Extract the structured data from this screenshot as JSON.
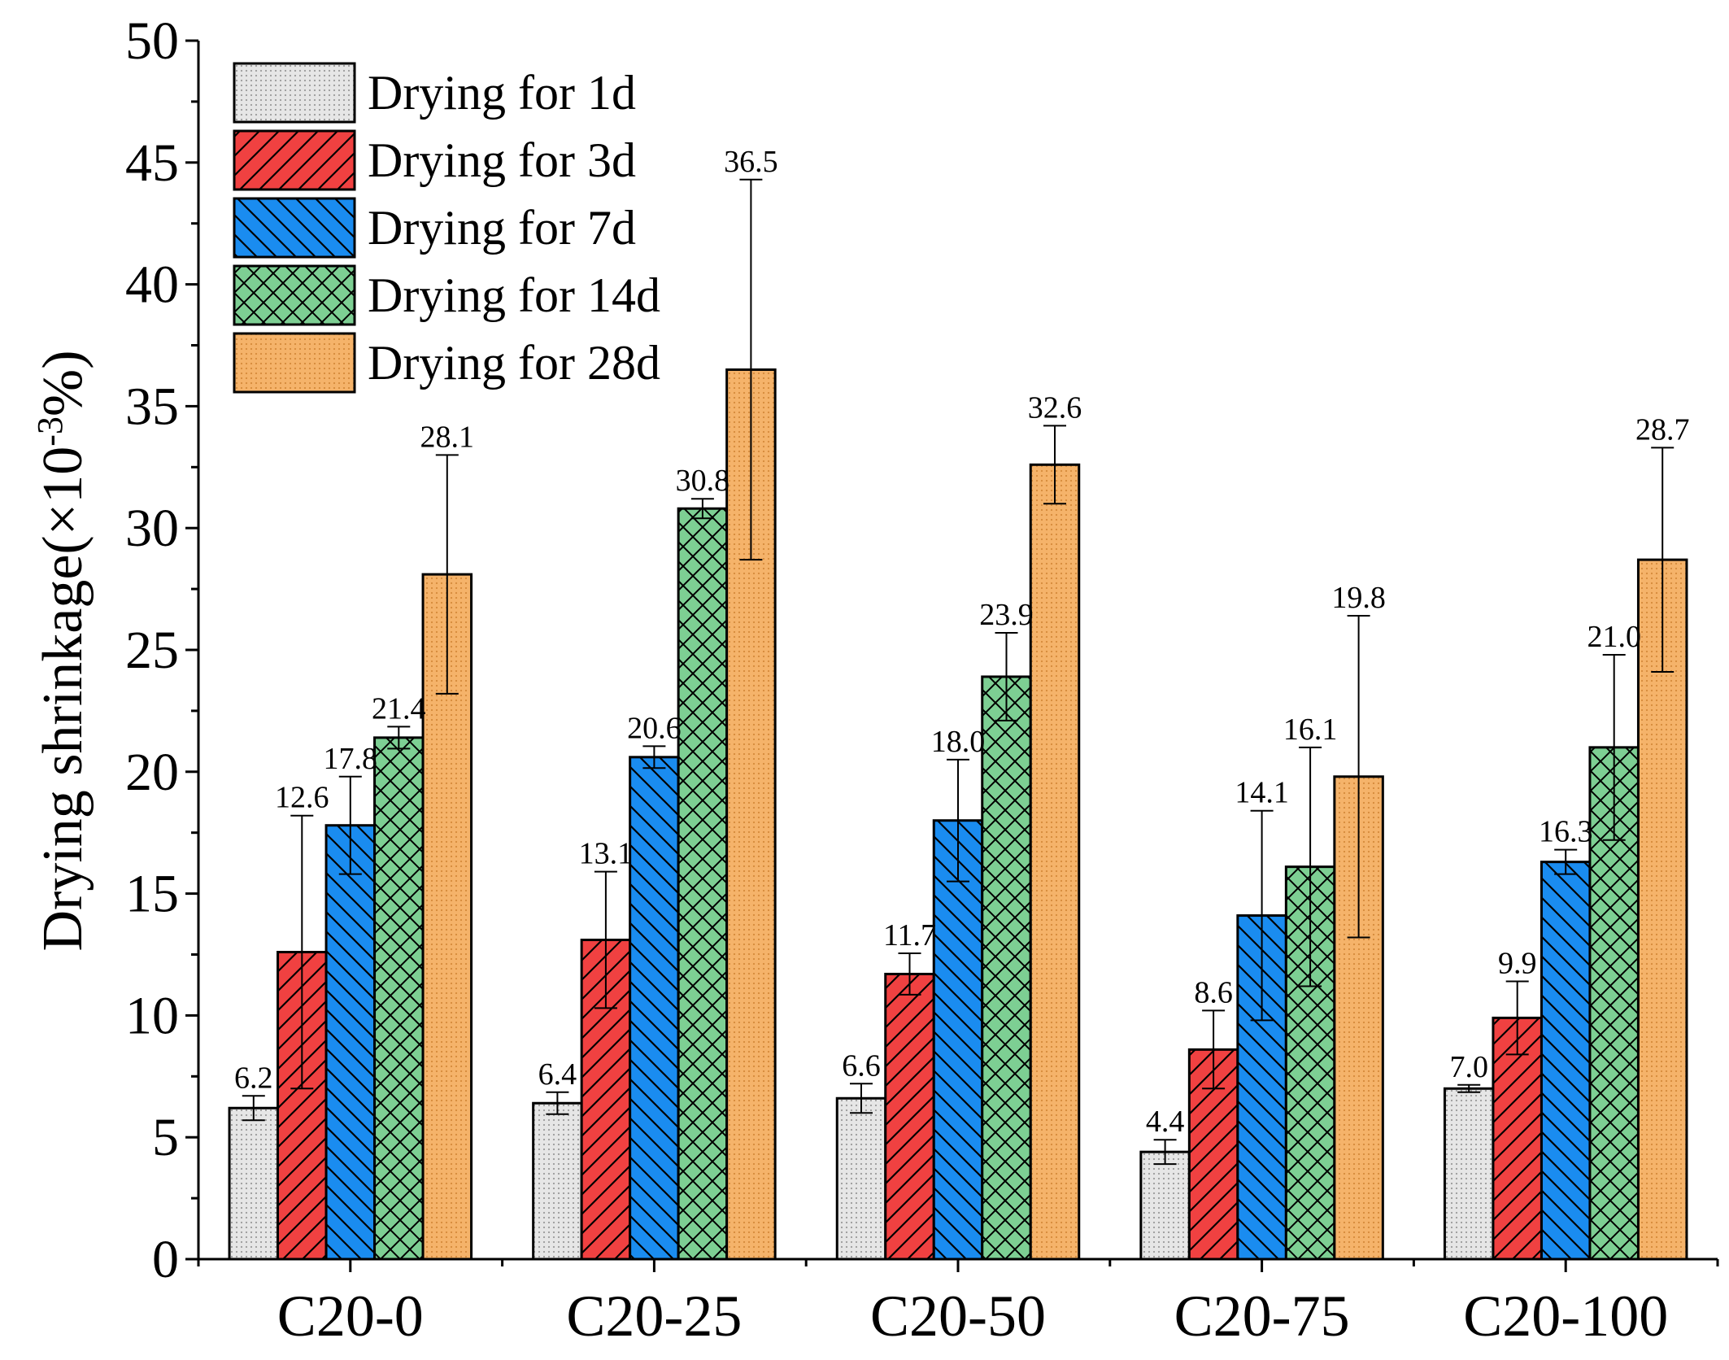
{
  "chart_data": {
    "type": "bar",
    "title": "",
    "xlabel": "",
    "ylabel": "Drying shrinkage(×10",
    "ylabel_sup": "-3",
    "ylabel_tail": "%)",
    "ylim": [
      0,
      50
    ],
    "yticks": [
      0,
      5,
      10,
      15,
      20,
      25,
      30,
      35,
      40,
      45,
      50
    ],
    "categories": [
      "C20-0",
      "C20-25",
      "C20-50",
      "C20-75",
      "C20-100"
    ],
    "legend_position": "top-left",
    "series": [
      {
        "name": "Drying for 1d",
        "values": [
          6.2,
          6.4,
          6.6,
          4.4,
          7.0
        ],
        "labels": [
          "6.2",
          "6.4",
          "6.6",
          "4.4",
          "7.0"
        ],
        "errors": [
          0.5,
          0.45,
          0.6,
          0.5,
          0.15
        ],
        "color": "#e3e3e3",
        "pattern": "dots"
      },
      {
        "name": "Drying for 3d",
        "values": [
          12.6,
          13.1,
          11.7,
          8.6,
          9.9
        ],
        "labels": [
          "12.6",
          "13.1",
          "11.7",
          "8.6",
          "9.9"
        ],
        "errors": [
          5.6,
          2.8,
          0.85,
          1.6,
          1.5
        ],
        "color": "#f04141",
        "pattern": "forward"
      },
      {
        "name": "Drying for 7d",
        "values": [
          17.8,
          20.6,
          18.0,
          14.1,
          16.3
        ],
        "labels": [
          "17.8",
          "20.6",
          "18.0",
          "14.1",
          "16.3"
        ],
        "errors": [
          2.0,
          0.45,
          2.5,
          4.3,
          0.5
        ],
        "color": "#1a8cf0",
        "pattern": "backward"
      },
      {
        "name": "Drying for 14d",
        "values": [
          21.4,
          30.8,
          23.9,
          16.1,
          21.0
        ],
        "labels": [
          "21.4",
          "30.8",
          "23.9",
          "16.1",
          "21.0"
        ],
        "errors": [
          0.45,
          0.4,
          1.8,
          4.9,
          3.8
        ],
        "color": "#7dcf93",
        "pattern": "cross"
      },
      {
        "name": "Drying for 28d",
        "values": [
          28.1,
          36.5,
          32.6,
          19.8,
          28.7
        ],
        "labels": [
          "28.1",
          "36.5",
          "32.6",
          "19.8",
          "28.7"
        ],
        "errors": [
          4.9,
          7.8,
          1.6,
          6.6,
          4.6
        ],
        "color": "#f5b36a",
        "pattern": "dots"
      }
    ]
  }
}
